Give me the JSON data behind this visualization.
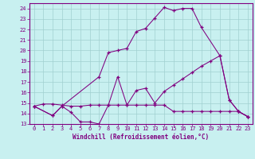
{
  "xlabel": "Windchill (Refroidissement éolien,°C)",
  "bg_color": "#c8f0f0",
  "line_color": "#800080",
  "grid_color": "#a0d0d0",
  "xlim": [
    -0.5,
    23.5
  ],
  "ylim": [
    13,
    24.5
  ],
  "xticks": [
    0,
    1,
    2,
    3,
    4,
    5,
    6,
    7,
    8,
    9,
    10,
    11,
    12,
    13,
    14,
    15,
    16,
    17,
    18,
    19,
    20,
    21,
    22,
    23
  ],
  "yticks": [
    13,
    14,
    15,
    16,
    17,
    18,
    19,
    20,
    21,
    22,
    23,
    24
  ],
  "line1_x": [
    0,
    1,
    2,
    3,
    4,
    5,
    6,
    7,
    8,
    9,
    10,
    11,
    12,
    13,
    14,
    15,
    16,
    17,
    18,
    19,
    20,
    21,
    22,
    23
  ],
  "line1_y": [
    14.7,
    14.9,
    14.9,
    14.8,
    14.7,
    14.7,
    14.8,
    14.8,
    14.8,
    14.8,
    14.8,
    14.8,
    14.8,
    14.8,
    14.8,
    14.2,
    14.2,
    14.2,
    14.2,
    14.2,
    14.2,
    14.2,
    14.2,
    13.7
  ],
  "line2_x": [
    0,
    2,
    3,
    4,
    5,
    6,
    7,
    8,
    9,
    10,
    11,
    12,
    13,
    14,
    15,
    16,
    17,
    18,
    19,
    20,
    21,
    22,
    23
  ],
  "line2_y": [
    14.7,
    13.8,
    14.7,
    14.1,
    13.2,
    13.2,
    13.0,
    14.8,
    17.5,
    14.8,
    16.2,
    16.4,
    15.0,
    16.1,
    16.7,
    17.3,
    17.9,
    18.5,
    19.0,
    19.5,
    15.3,
    14.2,
    13.7
  ],
  "line3_x": [
    0,
    2,
    3,
    7,
    8,
    9,
    10,
    11,
    12,
    13,
    14,
    15,
    16,
    17,
    18,
    20,
    21,
    22,
    23
  ],
  "line3_y": [
    14.7,
    13.8,
    14.7,
    17.5,
    19.8,
    20.0,
    20.2,
    21.8,
    22.1,
    23.1,
    24.1,
    23.8,
    24.0,
    24.0,
    22.2,
    19.5,
    15.3,
    14.2,
    13.7
  ],
  "tick_fontsize": 5,
  "xlabel_fontsize": 5.5,
  "spine_color": "#800080"
}
